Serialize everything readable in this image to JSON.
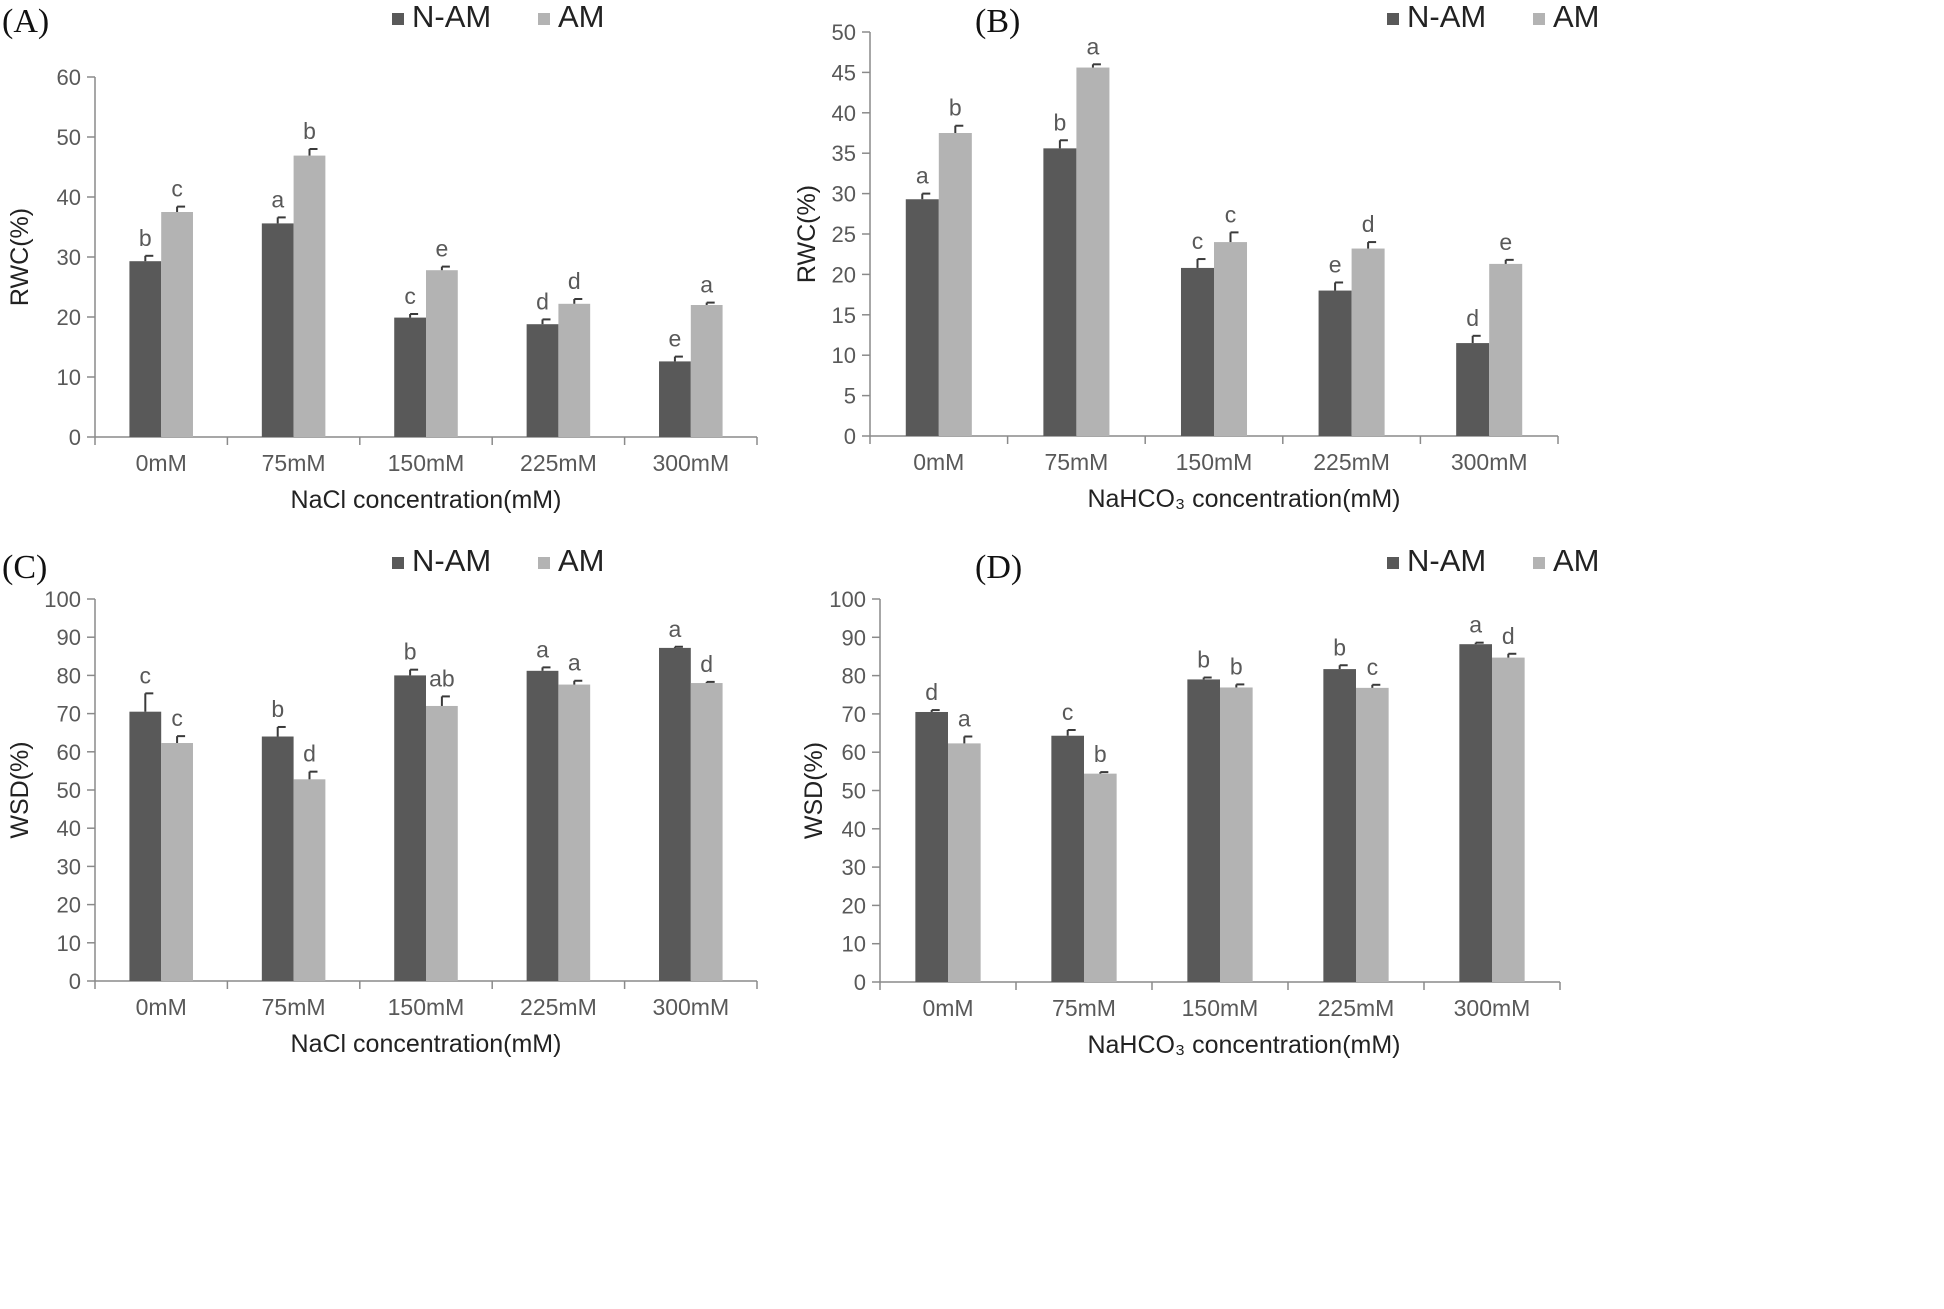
{
  "colors": {
    "nam": "#595959",
    "am": "#b3b3b3"
  },
  "chart_data": [
    {
      "type": "bar",
      "panel": "(A)",
      "xlabel": "NaCl concentration(mM)",
      "ylabel": "RWC(%)",
      "ylim": [
        0,
        60
      ],
      "ytick_step": 10,
      "grid": false,
      "legend_position": "top-center",
      "categories": [
        "0mM",
        "75mM",
        "150mM",
        "225mM",
        "300mM"
      ],
      "series": [
        {
          "name": "N-AM",
          "values": [
            29.3,
            35.6,
            19.9,
            18.8,
            12.6
          ],
          "errors": [
            0.9,
            1.0,
            0.6,
            0.8,
            0.8
          ],
          "letters": [
            "b",
            "a",
            "c",
            "d",
            "e"
          ]
        },
        {
          "name": "AM",
          "values": [
            37.5,
            46.9,
            27.8,
            22.2,
            22.0
          ],
          "errors": [
            0.9,
            1.1,
            0.6,
            0.8,
            0.4
          ],
          "letters": [
            "c",
            "b",
            "e",
            "d",
            "a"
          ]
        }
      ]
    },
    {
      "type": "bar",
      "panel": "(B)",
      "xlabel": "NaHCO₃ concentration(mM)",
      "ylabel": "RWC(%)",
      "ylim": [
        0,
        50
      ],
      "ytick_step": 5,
      "grid": false,
      "legend_position": "top-center",
      "categories": [
        "0mM",
        "75mM",
        "150mM",
        "225mM",
        "300mM"
      ],
      "series": [
        {
          "name": "N-AM",
          "values": [
            29.3,
            35.6,
            20.8,
            18.0,
            11.5
          ],
          "errors": [
            0.7,
            1.0,
            1.1,
            1.0,
            0.9
          ],
          "letters": [
            "a",
            "b",
            "c",
            "e",
            "d"
          ]
        },
        {
          "name": "AM",
          "values": [
            37.5,
            45.6,
            24.0,
            23.2,
            21.3
          ],
          "errors": [
            0.9,
            0.4,
            1.2,
            0.8,
            0.5
          ],
          "letters": [
            "b",
            "a",
            "c",
            "d",
            "e"
          ]
        }
      ]
    },
    {
      "type": "bar",
      "panel": "(C)",
      "xlabel": "NaCl concentration(mM)",
      "ylabel": "WSD(%)",
      "ylim": [
        0,
        100
      ],
      "ytick_step": 10,
      "grid": false,
      "legend_position": "top-center",
      "categories": [
        "0mM",
        "75mM",
        "150mM",
        "225mM",
        "300mM"
      ],
      "series": [
        {
          "name": "N-AM",
          "values": [
            70.5,
            64.0,
            80.0,
            81.2,
            87.2
          ],
          "errors": [
            4.8,
            2.5,
            1.5,
            0.9,
            0.3
          ],
          "letters": [
            "c",
            "b",
            "b",
            "a",
            "a"
          ]
        },
        {
          "name": "AM",
          "values": [
            62.3,
            52.8,
            72.0,
            77.6,
            78.0
          ],
          "errors": [
            1.8,
            2.0,
            2.5,
            1.0,
            0.3
          ],
          "letters": [
            "c",
            "d",
            "ab",
            "a",
            "d"
          ]
        }
      ]
    },
    {
      "type": "bar",
      "panel": "(D)",
      "xlabel": "NaHCO₃ concentration(mM)",
      "ylabel": "WSD(%)",
      "ylim": [
        0,
        100
      ],
      "ytick_step": 10,
      "grid": false,
      "legend_position": "top-center",
      "categories": [
        "0mM",
        "75mM",
        "150mM",
        "225mM",
        "300mM"
      ],
      "series": [
        {
          "name": "N-AM",
          "values": [
            70.5,
            64.3,
            79.0,
            81.7,
            88.2
          ],
          "errors": [
            0.5,
            1.5,
            0.5,
            1.0,
            0.4
          ],
          "letters": [
            "d",
            "c",
            "b",
            "b",
            "a"
          ]
        },
        {
          "name": "AM",
          "values": [
            62.3,
            54.4,
            76.9,
            76.8,
            84.7
          ],
          "errors": [
            1.8,
            0.4,
            0.8,
            0.8,
            1.0
          ],
          "letters": [
            "a",
            "b",
            "b",
            "c",
            "d"
          ]
        }
      ]
    }
  ]
}
